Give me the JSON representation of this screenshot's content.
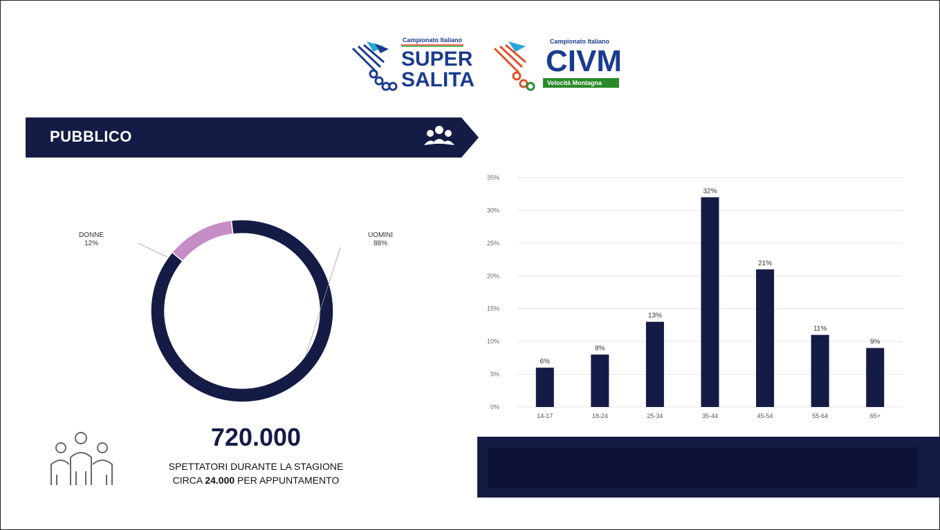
{
  "logos": {
    "super_salita": {
      "top_text": "Campionato Italiano",
      "line1": "SUPER",
      "line2": "SALITA"
    },
    "civm": {
      "top_text": "Campionato Italiano",
      "main": "CIVM",
      "bottom_text": "Velocità Montagna"
    }
  },
  "banner": {
    "title": "PUBBLICO"
  },
  "donut": {
    "slices": [
      {
        "label": "UOMINI",
        "value_label": "88%",
        "value": 88,
        "color": "#141b45"
      },
      {
        "label": "DONNE",
        "value_label": "12%",
        "value": 12,
        "color": "#c58cc5"
      }
    ]
  },
  "stats": {
    "big_number": "720.000",
    "line1": "SPETTATORI DURANTE LA STAGIONE",
    "line2_prefix": "CIRCA ",
    "line2_bold": "24.000",
    "line2_suffix": " PER APPUNTAMENTO"
  },
  "colors": {
    "navy": "#141b45",
    "pink": "#c58cc5"
  },
  "chart_data": [
    {
      "type": "pie",
      "categories": [
        "UOMINI",
        "DONNE"
      ],
      "values": [
        88,
        12
      ]
    },
    {
      "type": "bar",
      "categories": [
        "14-17",
        "18-24",
        "25-34",
        "35-44",
        "45-54",
        "55-64",
        "65+"
      ],
      "values": [
        6,
        8,
        13,
        32,
        21,
        11,
        9
      ],
      "value_labels": [
        "6%",
        "8%",
        "13%",
        "32%",
        "21%",
        "11%",
        "9%"
      ],
      "yticks": [
        "0%",
        "5%",
        "10%",
        "15%",
        "20%",
        "25%",
        "30%",
        "35%"
      ],
      "ylim": [
        0,
        35
      ],
      "grid": true
    }
  ]
}
